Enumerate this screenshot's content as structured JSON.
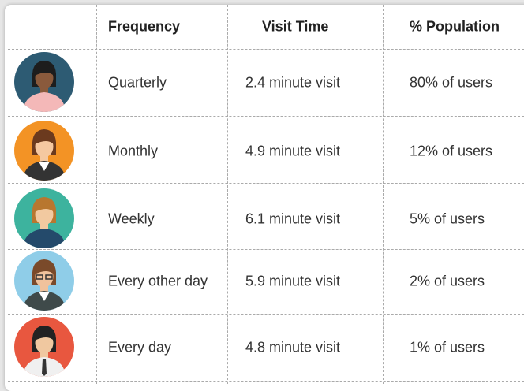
{
  "table": {
    "header": [
      "Frequency",
      "Visit Time",
      "% Population"
    ],
    "rows": [
      [
        "Quarterly",
        "2.4 minute visit",
        "80% of users"
      ],
      [
        "Monthly",
        "4.9 minute visit",
        "12% of users"
      ],
      [
        "Weekly",
        "6.1 minute visit",
        "5% of users"
      ],
      [
        "Every other day",
        "5.9 minute visit",
        "2% of users"
      ],
      [
        "Every day",
        "4.8 minute visit",
        "1% of users"
      ]
    ]
  }
}
